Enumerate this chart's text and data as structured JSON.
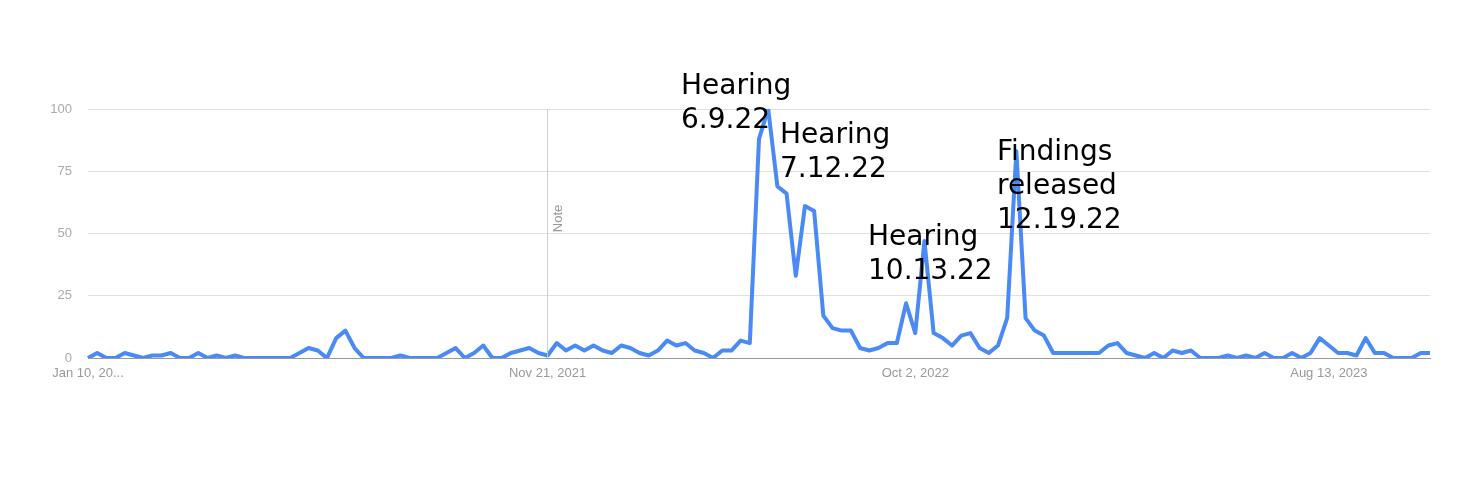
{
  "chart_data": {
    "type": "line",
    "categories": [
      "Jan 10, 20...",
      null,
      null,
      null,
      null,
      null,
      null,
      null,
      null,
      null,
      null,
      null,
      null,
      null,
      null,
      null,
      null,
      null,
      null,
      null,
      null,
      null,
      null,
      null,
      null,
      null,
      null,
      null,
      null,
      null,
      null,
      null,
      null,
      null,
      null,
      null,
      null,
      null,
      null,
      null,
      null,
      null,
      null,
      null,
      null,
      null,
      null,
      null,
      null,
      null,
      "Nov 21, 2021",
      null,
      null,
      null,
      null,
      null,
      null,
      null,
      null,
      null,
      null,
      null,
      null,
      null,
      null,
      null,
      null,
      null,
      null,
      null,
      null,
      null,
      null,
      null,
      null,
      null,
      null,
      null,
      null,
      null,
      null,
      null,
      null,
      null,
      null,
      null,
      null,
      null,
      null,
      null,
      "Oct 2, 2022",
      null,
      null,
      null,
      null,
      null,
      null,
      null,
      null,
      null,
      null,
      null,
      null,
      null,
      null,
      null,
      null,
      null,
      null,
      null,
      null,
      null,
      null,
      null,
      null,
      null,
      null,
      null,
      null,
      null,
      null,
      null,
      null,
      null,
      null,
      null,
      null,
      null,
      null,
      null,
      null,
      null,
      null,
      null,
      null,
      "Aug 13, 2023",
      null,
      null,
      null,
      null,
      null,
      null,
      null,
      null,
      null,
      null,
      null
    ],
    "series": [
      {
        "color": "#4a8af4",
        "values": [
          0,
          2,
          0,
          0,
          2,
          1,
          0,
          1,
          1,
          2,
          0,
          0,
          2,
          0,
          1,
          0,
          1,
          0,
          0,
          0,
          0,
          0,
          0,
          2,
          4,
          3,
          0,
          8,
          11,
          4,
          0,
          0,
          0,
          0,
          1,
          0,
          0,
          0,
          0,
          2,
          4,
          0,
          2,
          5,
          0,
          0,
          2,
          3,
          4,
          2,
          1,
          6,
          3,
          5,
          3,
          5,
          3,
          2,
          5,
          4,
          2,
          1,
          3,
          7,
          5,
          6,
          3,
          2,
          0,
          3,
          3,
          7,
          6,
          88,
          100,
          69,
          66,
          33,
          61,
          59,
          17,
          12,
          11,
          11,
          4,
          3,
          4,
          6,
          6,
          22,
          10,
          47,
          10,
          8,
          5,
          9,
          10,
          4,
          2,
          5,
          16,
          83,
          16,
          11,
          9,
          2,
          2,
          2,
          2,
          2,
          2,
          5,
          6,
          2,
          1,
          0,
          2,
          0,
          3,
          2,
          3,
          0,
          0,
          0,
          1,
          0,
          1,
          0,
          2,
          0,
          0,
          2,
          0,
          2,
          8,
          5,
          2,
          2,
          1,
          8,
          2,
          2,
          0,
          0,
          0,
          2,
          2
        ]
      }
    ],
    "ylim": [
      0,
      100
    ],
    "yticks": [
      0,
      25,
      50,
      75,
      100
    ],
    "tick_labels": "xy",
    "grid": "y",
    "legend": false,
    "marker": "none",
    "line_style": "solid",
    "ref_lines": [
      {
        "axis": "x",
        "value": "Nov 21, 2021",
        "label": "Note",
        "color": "#cccccc"
      }
    ],
    "annotations": [
      "Hearing\n6.9.22",
      "Hearing\n7.12.22",
      "Hearing\n10.13.22",
      "Findings\nreleased\n12.19.22"
    ]
  }
}
